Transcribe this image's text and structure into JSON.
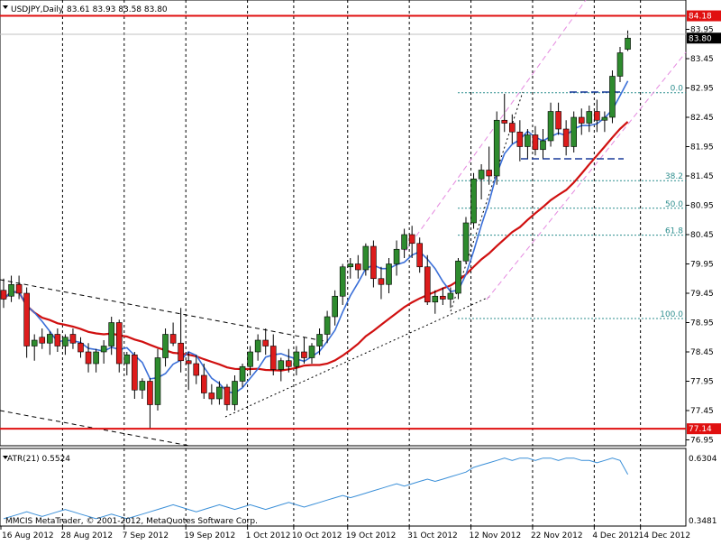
{
  "header": {
    "symbol_label": "USDJPY,Daily",
    "ohlc_label": "83.61 83.93 83.58 83.80"
  },
  "indicator": {
    "label": "ATR(21) 0.5524",
    "ticks": [
      "0.6304",
      "0.3481"
    ]
  },
  "copyright": "MMCIS MetaTrader, © 2001-2012, MetaQuotes Software Corp.",
  "colors": {
    "bull_candle": "#2e8b2e",
    "bear_candle": "#dd1c1c",
    "fast_ma": "#3a6fd8",
    "slow_ma": "#d01010",
    "fibo": "#2f8f8f",
    "channel": "#e58ae0",
    "level_line": "#e01010",
    "atr": "#3a8fd8"
  },
  "chart_data": {
    "type": "candlestick",
    "y_ticks": [
      "83.95",
      "83.45",
      "82.95",
      "82.45",
      "81.95",
      "81.45",
      "80.95",
      "80.45",
      "79.95",
      "79.45",
      "78.95",
      "78.45",
      "77.95",
      "77.45",
      "76.95"
    ],
    "y_range": [
      76.85,
      84.45
    ],
    "x_tick_labels": [
      "16 Aug 2012",
      "28 Aug 2012",
      "7 Sep 2012",
      "19 Sep 2012",
      "1 Oct 2012",
      "10 Oct 2012",
      "19 Oct 2012",
      "31 Oct 2012",
      "12 Nov 2012",
      "22 Nov 2012",
      "4 Dec 2012",
      "14 Dec 2012"
    ],
    "price_tags": [
      {
        "value": 84.18,
        "label": "84.18",
        "kind": "level"
      },
      {
        "value": 83.8,
        "label": "83.80",
        "kind": "current"
      },
      {
        "value": 77.14,
        "label": "77.14",
        "kind": "level"
      }
    ],
    "fibo_levels": [
      {
        "label": "0.0",
        "value": 82.87
      },
      {
        "label": "38.2",
        "value": 81.37
      },
      {
        "label": "50.0",
        "value": 80.9
      },
      {
        "label": "61.8",
        "value": 80.44
      },
      {
        "label": "100.0",
        "value": 79.02
      }
    ],
    "candles": [
      [
        79.5,
        79.7,
        79.2,
        79.35
      ],
      [
        79.4,
        79.75,
        79.3,
        79.6
      ],
      [
        79.6,
        79.75,
        79.35,
        79.45
      ],
      [
        79.45,
        79.55,
        78.35,
        78.55
      ],
      [
        78.55,
        78.75,
        78.3,
        78.65
      ],
      [
        78.7,
        78.85,
        78.5,
        78.6
      ],
      [
        78.6,
        78.8,
        78.4,
        78.75
      ],
      [
        78.75,
        78.85,
        78.45,
        78.55
      ],
      [
        78.55,
        78.75,
        78.4,
        78.7
      ],
      [
        78.75,
        78.85,
        78.5,
        78.6
      ],
      [
        78.6,
        78.7,
        78.35,
        78.45
      ],
      [
        78.45,
        78.6,
        78.1,
        78.25
      ],
      [
        78.25,
        78.5,
        78.1,
        78.45
      ],
      [
        78.45,
        78.65,
        78.25,
        78.55
      ],
      [
        78.55,
        79.05,
        78.4,
        78.95
      ],
      [
        78.95,
        79.0,
        78.1,
        78.25
      ],
      [
        78.25,
        78.45,
        78.05,
        78.4
      ],
      [
        78.4,
        78.45,
        77.65,
        77.8
      ],
      [
        77.8,
        78.0,
        77.65,
        77.95
      ],
      [
        77.95,
        78.0,
        77.15,
        77.55
      ],
      [
        77.55,
        78.5,
        77.45,
        78.35
      ],
      [
        78.35,
        78.85,
        78.2,
        78.75
      ],
      [
        78.75,
        78.95,
        78.55,
        78.6
      ],
      [
        78.6,
        79.2,
        78.1,
        78.3
      ],
      [
        78.3,
        78.45,
        77.8,
        78.25
      ],
      [
        78.25,
        78.4,
        77.9,
        78.05
      ],
      [
        78.05,
        78.25,
        77.65,
        77.75
      ],
      [
        77.75,
        77.9,
        77.55,
        77.65
      ],
      [
        77.65,
        77.95,
        77.55,
        77.85
      ],
      [
        77.85,
        77.9,
        77.45,
        77.55
      ],
      [
        77.55,
        78.05,
        77.45,
        77.95
      ],
      [
        77.95,
        78.25,
        77.85,
        78.2
      ],
      [
        78.2,
        78.55,
        78.05,
        78.45
      ],
      [
        78.45,
        78.75,
        78.3,
        78.65
      ],
      [
        78.65,
        78.85,
        78.4,
        78.55
      ],
      [
        78.55,
        78.75,
        78.05,
        78.15
      ],
      [
        78.15,
        78.35,
        77.95,
        78.3
      ],
      [
        78.3,
        78.5,
        78.1,
        78.2
      ],
      [
        78.2,
        78.55,
        78.05,
        78.45
      ],
      [
        78.45,
        78.7,
        78.25,
        78.35
      ],
      [
        78.35,
        78.6,
        78.25,
        78.55
      ],
      [
        78.55,
        78.85,
        78.4,
        78.75
      ],
      [
        78.75,
        79.15,
        78.6,
        79.05
      ],
      [
        79.05,
        79.5,
        78.9,
        79.4
      ],
      [
        79.4,
        79.95,
        79.25,
        79.9
      ],
      [
        79.9,
        80.05,
        79.7,
        79.95
      ],
      [
        79.95,
        80.1,
        79.7,
        79.85
      ],
      [
        79.85,
        80.3,
        79.75,
        80.25
      ],
      [
        80.25,
        80.35,
        79.55,
        79.7
      ],
      [
        79.7,
        79.9,
        79.35,
        79.6
      ],
      [
        79.6,
        80.05,
        79.45,
        79.95
      ],
      [
        79.95,
        80.35,
        79.75,
        80.2
      ],
      [
        80.2,
        80.55,
        80.05,
        80.45
      ],
      [
        80.45,
        80.6,
        80.05,
        80.3
      ],
      [
        80.3,
        80.4,
        79.8,
        79.9
      ],
      [
        79.9,
        80.1,
        79.25,
        79.3
      ],
      [
        79.3,
        79.5,
        79.1,
        79.4
      ],
      [
        79.4,
        79.55,
        79.25,
        79.35
      ],
      [
        79.35,
        79.55,
        79.2,
        79.45
      ],
      [
        79.45,
        80.05,
        79.35,
        80.0
      ],
      [
        80.0,
        80.75,
        79.95,
        80.65
      ],
      [
        80.65,
        81.5,
        80.55,
        81.4
      ],
      [
        81.4,
        81.65,
        81.05,
        81.55
      ],
      [
        81.55,
        81.95,
        81.3,
        81.45
      ],
      [
        81.45,
        82.55,
        81.3,
        82.4
      ],
      [
        82.4,
        82.85,
        82.2,
        82.35
      ],
      [
        82.35,
        82.5,
        82.0,
        82.2
      ],
      [
        82.2,
        82.4,
        81.7,
        81.95
      ],
      [
        81.95,
        82.25,
        81.75,
        82.15
      ],
      [
        82.15,
        82.3,
        81.8,
        81.9
      ],
      [
        81.9,
        82.25,
        81.75,
        82.05
      ],
      [
        82.05,
        82.7,
        81.95,
        82.55
      ],
      [
        82.55,
        82.7,
        82.15,
        82.25
      ],
      [
        82.25,
        82.4,
        81.8,
        81.95
      ],
      [
        81.95,
        82.55,
        81.85,
        82.45
      ],
      [
        82.45,
        82.6,
        82.15,
        82.35
      ],
      [
        82.35,
        82.65,
        82.2,
        82.55
      ],
      [
        82.55,
        82.75,
        82.2,
        82.4
      ],
      [
        82.4,
        82.55,
        82.2,
        82.45
      ],
      [
        82.45,
        83.25,
        82.35,
        83.15
      ],
      [
        83.15,
        83.65,
        83.05,
        83.55
      ],
      [
        83.61,
        83.93,
        83.58,
        83.8
      ]
    ],
    "atr_values": [
      0.36,
      0.37,
      0.38,
      0.39,
      0.38,
      0.37,
      0.38,
      0.39,
      0.4,
      0.39,
      0.38,
      0.37,
      0.36,
      0.37,
      0.38,
      0.37,
      0.36,
      0.37,
      0.38,
      0.39,
      0.4,
      0.41,
      0.42,
      0.41,
      0.4,
      0.39,
      0.4,
      0.41,
      0.42,
      0.41,
      0.4,
      0.41,
      0.42,
      0.41,
      0.4,
      0.41,
      0.42,
      0.43,
      0.42,
      0.41,
      0.42,
      0.43,
      0.44,
      0.45,
      0.46,
      0.45,
      0.46,
      0.47,
      0.48,
      0.49,
      0.5,
      0.51,
      0.5,
      0.51,
      0.52,
      0.53,
      0.52,
      0.53,
      0.54,
      0.55,
      0.56,
      0.58,
      0.59,
      0.6,
      0.61,
      0.62,
      0.61,
      0.62,
      0.62,
      0.61,
      0.62,
      0.62,
      0.61,
      0.62,
      0.62,
      0.61,
      0.61,
      0.6,
      0.61,
      0.62,
      0.61,
      0.55
    ],
    "atr_range": [
      0.3481,
      0.6304
    ]
  }
}
